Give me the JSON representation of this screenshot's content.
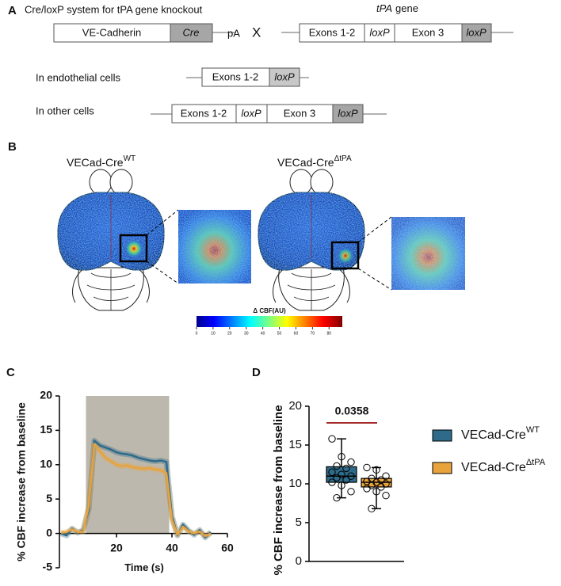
{
  "panel_labels": [
    "A",
    "B",
    "C",
    "D"
  ],
  "diagram": {
    "title": "Cre/loxP system for tPA gene knockout",
    "gene_label": {
      "italic": "tPA",
      "text": "gene"
    },
    "construct_cre": [
      "VE-Cadherin",
      "Cre"
    ],
    "polyA": "pA",
    "cross": "X",
    "construct_tpa": [
      "Exons 1-2",
      "loxP",
      "Exon 3",
      "loxP"
    ],
    "endothelial": {
      "label": "In endothelial cells",
      "segments": [
        "Exons 1-2",
        "loxP"
      ]
    },
    "other": {
      "label": "In other cells",
      "segments": [
        "Exons 1-2",
        "loxP",
        "Exon 3",
        "loxP"
      ]
    }
  },
  "imaging": {
    "groups": [
      {
        "name": "VECad-Cre",
        "sup": "WT"
      },
      {
        "name": "VECad-Cre",
        "sup": "ΔtPA"
      }
    ],
    "colorbar": {
      "label": "Δ CBF(AU)",
      "lim": [
        0,
        88
      ],
      "ticks": [
        0,
        10,
        20,
        30,
        40,
        50,
        60,
        70,
        80
      ]
    }
  },
  "chart_data": [
    {
      "type": "line",
      "ylabel": "% CBF increase from baseline",
      "xlabel": "Time (s)",
      "x": [
        0,
        2,
        4,
        6,
        8,
        10,
        12,
        14,
        16,
        18,
        20,
        22,
        24,
        26,
        28,
        30,
        32,
        34,
        36,
        38,
        40,
        42,
        44,
        46,
        48,
        50,
        52,
        54
      ],
      "xlim": [
        0,
        60
      ],
      "xticks": [
        20,
        40,
        60
      ],
      "ylim": [
        -5,
        20
      ],
      "yticks": [
        -5,
        0,
        5,
        10,
        15,
        20
      ],
      "shaded_region": [
        9,
        39
      ],
      "series": [
        {
          "color": "#2e6b8a",
          "values": [
            0,
            -0.3,
            0.7,
            0.1,
            0.5,
            3.5,
            13.5,
            12.8,
            12.5,
            12.2,
            11.8,
            11.6,
            11.5,
            11.3,
            11.0,
            10.8,
            10.6,
            10.5,
            10.6,
            10.4,
            2.5,
            -0.3,
            1.3,
            0.4,
            -0.2,
            0.5,
            -0.6,
            0.2
          ]
        },
        {
          "color": "#e8a33d",
          "values": [
            0.1,
            0.2,
            0.6,
            0.2,
            0.3,
            4.0,
            13.0,
            12.0,
            11.0,
            10.5,
            10.0,
            9.8,
            9.9,
            9.6,
            9.5,
            9.4,
            9.5,
            9.3,
            9.2,
            8.8,
            2.0,
            -0.2,
            1.0,
            0.3,
            0.0,
            0.3,
            -0.4,
            0.0
          ]
        }
      ]
    },
    {
      "type": "box",
      "ylabel": "% CBF increase from baseline",
      "ylim": [
        0,
        20
      ],
      "yticks": [
        0,
        5,
        10,
        15,
        20
      ],
      "annotation": "0.0358",
      "annotation_color": "#a52a2a",
      "series": [
        {
          "name": "VECad-Cre",
          "name_sup": "WT",
          "color": "#2e6b8a",
          "min": 8.2,
          "q1": 10.2,
          "median": 11.0,
          "q3": 12.2,
          "max": 15.8,
          "points": [
            15.8,
            13.5,
            12.8,
            12.3,
            12.0,
            11.5,
            11.2,
            11.0,
            10.8,
            10.5,
            10.2,
            9.8,
            9.0,
            8.2
          ]
        },
        {
          "name": "VECad-Cre",
          "name_sup": "ΔtPA",
          "color": "#e8a33d",
          "min": 6.8,
          "q1": 9.6,
          "median": 10.2,
          "q3": 10.7,
          "max": 12.1,
          "points": [
            12.1,
            11.8,
            11.0,
            10.7,
            10.5,
            10.3,
            10.2,
            10.0,
            9.8,
            9.6,
            9.4,
            9.0,
            8.5,
            6.8
          ]
        }
      ]
    }
  ]
}
